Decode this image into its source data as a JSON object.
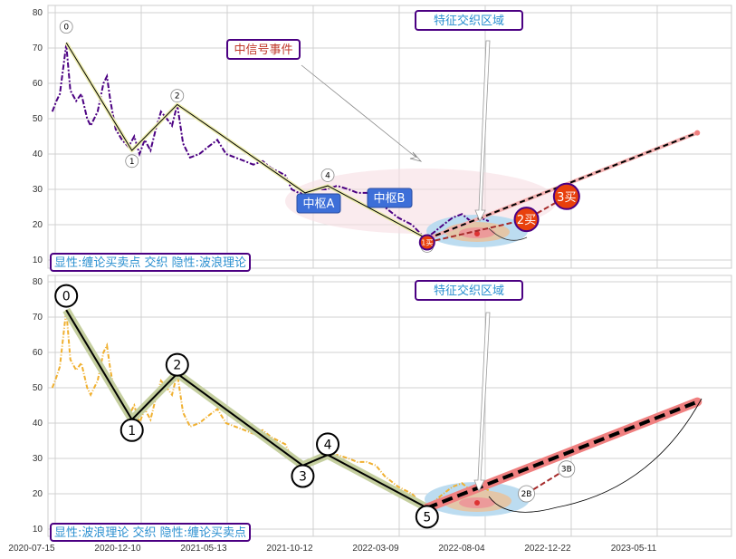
{
  "chart_data": [
    {
      "type": "line",
      "panel": "top",
      "x_origin": "2020-07-15",
      "x_unit": "days",
      "ylim": [
        8,
        82
      ],
      "yticks": [
        "80",
        "70",
        "60",
        "50",
        "40",
        "30",
        "20",
        "10"
      ],
      "ytick_values": [
        80,
        70,
        60,
        50,
        40,
        30,
        20,
        10
      ],
      "grid": true,
      "series": [
        {
          "name": "price",
          "color": "#4b0082",
          "t": [
            -5,
            2,
            8,
            19,
            26,
            36,
            45,
            55,
            61,
            73,
            83,
            89,
            95,
            104,
            115,
            126,
            136,
            145,
            154,
            164,
            173,
            182,
            192,
            201,
            210,
            220,
            232,
            248,
            263,
            279,
            294,
            310,
            326,
            341,
            357,
            372,
            396,
            407,
            419,
            435,
            450,
            466,
            485,
            505,
            520,
            536,
            552,
            567,
            590,
            614,
            637,
            653,
            668,
            684,
            700,
            715,
            731,
            746
          ],
          "values": [
            52,
            55,
            57,
            71,
            58,
            55,
            57,
            50,
            48,
            52,
            60,
            62,
            55,
            47,
            44,
            42,
            45,
            40,
            44,
            41,
            47,
            52,
            50,
            48,
            54,
            43,
            39,
            40,
            42,
            44,
            40,
            39,
            38,
            37,
            38,
            36,
            34,
            30,
            29,
            29,
            30,
            30,
            31,
            30,
            29,
            29,
            28,
            25,
            22,
            20,
            16,
            18,
            20,
            22,
            23,
            21,
            22,
            21
          ]
        }
      ],
      "zigzag": {
        "t": [
          19,
          132,
          210,
          430,
          469,
          640
        ],
        "values": [
          71.5,
          41,
          54,
          29,
          31,
          16
        ]
      },
      "projection": {
        "t": [
          640,
          1105
        ],
        "values": [
          16,
          46
        ]
      },
      "wave_labels": [
        {
          "label": "0",
          "t": 19,
          "value": 76
        },
        {
          "label": "1",
          "t": 132,
          "value": 38
        },
        {
          "label": "2",
          "t": 210,
          "value": 56.5
        },
        {
          "label": "4",
          "t": 469,
          "value": 34
        },
        {
          "label": "",
          "t": 640,
          "value": 14
        }
      ],
      "buy_points": [
        {
          "label": "1买",
          "t": 640,
          "value": 15
        },
        {
          "label": "2买",
          "t": 811,
          "value": 21.5
        },
        {
          "label": "3买",
          "t": 880,
          "value": 28
        }
      ],
      "zones": [
        {
          "label": "中枢A"
        },
        {
          "label": "中枢B"
        }
      ],
      "annotations": {
        "signal": "中信号事件",
        "overlap": "特征交织区域",
        "legend": "显性:缠论买卖点 交织 隐性:波浪理论"
      }
    },
    {
      "type": "line",
      "panel": "bottom",
      "x_origin": "2020-07-15",
      "x_unit": "days",
      "ylim": [
        8,
        82
      ],
      "yticks": [
        "80",
        "70",
        "60",
        "50",
        "40",
        "30",
        "20",
        "10"
      ],
      "ytick_values": [
        80,
        70,
        60,
        50,
        40,
        30,
        20,
        10
      ],
      "xticks": [
        "2020-07-15",
        "2020-12-10",
        "2021-05-13",
        "2021-10-12",
        "2022-03-09",
        "2022-08-04",
        "2022-12-22",
        "2023-05-11"
      ],
      "xtick_values": [
        0,
        148,
        296,
        444,
        592,
        740,
        888,
        1036
      ],
      "grid": true,
      "series": [
        {
          "name": "price",
          "color": "#f0b030",
          "t": [
            -5,
            2,
            8,
            19,
            26,
            36,
            45,
            55,
            61,
            73,
            83,
            89,
            95,
            104,
            115,
            126,
            136,
            145,
            154,
            164,
            173,
            182,
            192,
            201,
            210,
            220,
            232,
            248,
            263,
            279,
            294,
            310,
            326,
            341,
            357,
            372,
            396,
            407,
            419,
            435,
            450,
            466,
            485,
            505,
            520,
            536,
            552,
            567,
            590,
            614,
            637,
            653,
            668,
            684,
            700,
            715,
            731,
            746
          ],
          "values": [
            50,
            53,
            56,
            72,
            58,
            55,
            57,
            50,
            48,
            52,
            60,
            62,
            55,
            47,
            44,
            42,
            45,
            40,
            44,
            41,
            47,
            52,
            50,
            48,
            54,
            43,
            39,
            40,
            42,
            44,
            40,
            39,
            38,
            37,
            38,
            36,
            34,
            30,
            29,
            29,
            30,
            30,
            31,
            30,
            29,
            29,
            28,
            25,
            22,
            20,
            16,
            18,
            20,
            22,
            23,
            21,
            22,
            21
          ]
        }
      ],
      "zigzag": {
        "t": [
          19,
          132,
          210,
          426,
          469,
          640
        ],
        "values": [
          72,
          41,
          54,
          28,
          31,
          16
        ]
      },
      "projection": {
        "t": [
          640,
          1105
        ],
        "values": [
          16,
          46
        ]
      },
      "wave_labels": [
        {
          "label": "0",
          "t": 19,
          "value": 76
        },
        {
          "label": "1",
          "t": 132,
          "value": 38
        },
        {
          "label": "2",
          "t": 210,
          "value": 56.5
        },
        {
          "label": "3",
          "t": 426,
          "value": 25
        },
        {
          "label": "4",
          "t": 469,
          "value": 34
        },
        {
          "label": "5",
          "t": 640,
          "value": 13.5
        }
      ],
      "buy_points": [
        {
          "label": "2B",
          "t": 811,
          "value": 20
        },
        {
          "label": "3B",
          "t": 880,
          "value": 27
        }
      ],
      "annotations": {
        "overlap": "特征交织区域",
        "legend": "显性:波浪理论 交织 隐性:缠论买卖点"
      }
    }
  ]
}
